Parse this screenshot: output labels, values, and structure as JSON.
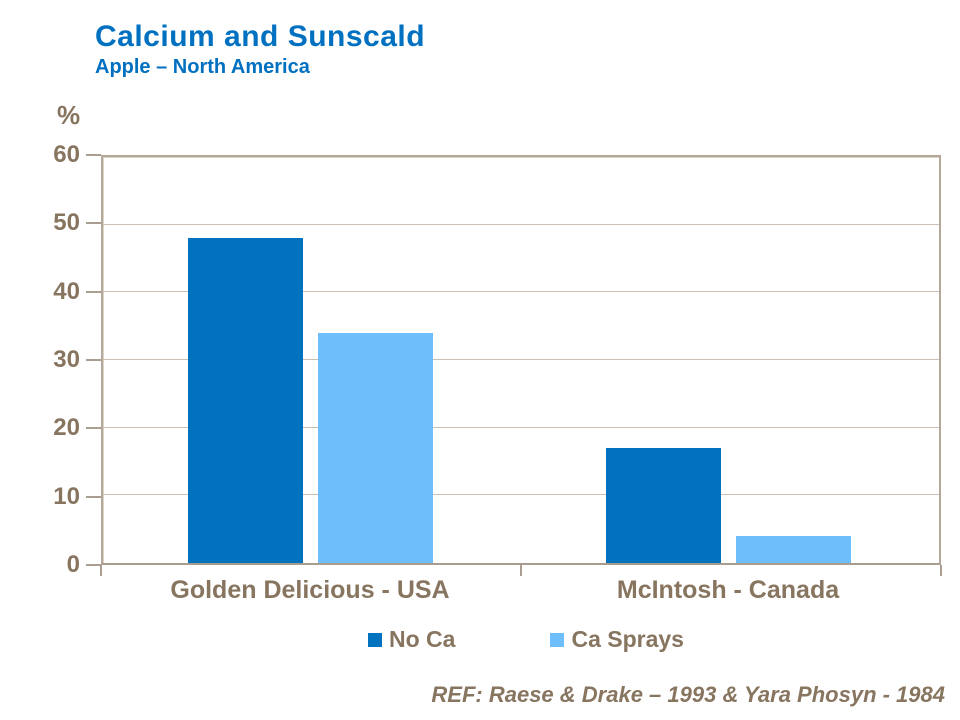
{
  "header": {
    "title": "Calcium and Sunscald",
    "subtitle": "Apple – North America"
  },
  "chart_data": {
    "type": "bar",
    "title": "Calcium and Sunscald",
    "subtitle": "Apple – North America",
    "unit_label": "%",
    "categories": [
      "Golden Delicious - USA",
      "McIntosh - Canada"
    ],
    "series": [
      {
        "name": "No Ca",
        "color": "#0072BE",
        "values": [
          48,
          17
        ]
      },
      {
        "name": "Ca Sprays",
        "color": "#6DBEFB",
        "values": [
          34,
          4
        ]
      }
    ],
    "ylim": [
      0,
      60
    ],
    "yticks": [
      0,
      10,
      20,
      30,
      40,
      50,
      60
    ],
    "grid": "horizontal",
    "legend_position": "bottom"
  },
  "footer": {
    "reference": "REF: Raese & Drake – 1993 & Yara Phosyn - 1984"
  },
  "colors": {
    "accent_blue": "#0070C0",
    "bar_dark": "#0072BE",
    "bar_light": "#6DBEFB",
    "text_taupe": "#877560",
    "gridline": "#C9BFB3",
    "plot_border": "#B3A899"
  }
}
